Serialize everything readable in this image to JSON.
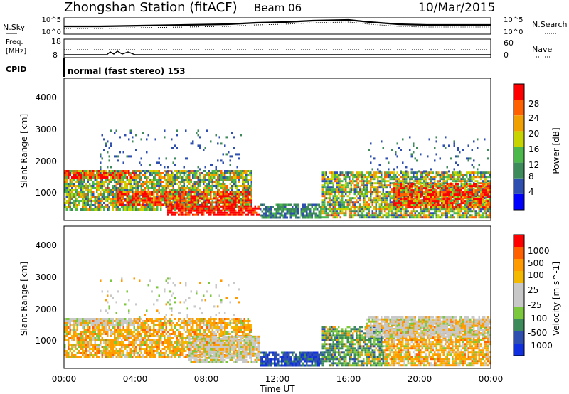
{
  "header": {
    "station": "Zhongshan Station (fitACF)",
    "beam": "Beam 06",
    "date": "10/Mar/2015"
  },
  "noise_panel": {
    "left_label": "N.Sky",
    "right_label": "N.Search",
    "left_ticks": [
      "10^5",
      "10^0"
    ],
    "right_ticks": [
      "10^5",
      "10^0"
    ]
  },
  "freq_panel": {
    "left_label_1": "Freq.",
    "left_label_2": "[MHz]",
    "left_ticks": [
      "18",
      "8"
    ],
    "right_label": "Nave",
    "right_ticks": [
      "60",
      "0"
    ]
  },
  "cpid": {
    "label": "CPID",
    "text": "normal (fast stereo) 153"
  },
  "time_axis": {
    "title": "Time UT",
    "ticks": [
      "00:00",
      "04:00",
      "08:00",
      "12:00",
      "16:00",
      "20:00",
      "00:00"
    ]
  },
  "colors": {
    "power_scale": [
      "#0000ff",
      "#2f4fb0",
      "#3d8a5a",
      "#4cb84c",
      "#c8d400",
      "#f0a000",
      "#ff6000",
      "#ff0000"
    ],
    "velocity_scale": [
      "#ff0000",
      "#ff6000",
      "#ff9a00",
      "#f3b800",
      "#c8c8c8",
      "#c8c8c8",
      "#7cc83c",
      "#3d8a5a",
      "#2f4fb0",
      "#1030e0"
    ]
  },
  "chart_data": [
    {
      "type": "heatmap",
      "name": "power-panel",
      "ylabel": "Slant Range [km]",
      "yticks": [
        "1000",
        "2000",
        "3000",
        "4000"
      ],
      "colorbar_label": "Power [dB]",
      "colorbar_ticks": [
        "4",
        "8",
        "12",
        "16",
        "20",
        "24",
        "28"
      ],
      "x_range_hours": [
        0,
        24
      ],
      "y_range_km": [
        180,
        4600
      ],
      "bands": [
        {
          "t0": 0.0,
          "t1": 10.6,
          "r0": 500,
          "r1": 1750,
          "level": "mid"
        },
        {
          "t0": 0.0,
          "t1": 4.0,
          "r0": 1500,
          "r1": 1750,
          "level": "high"
        },
        {
          "t0": 3.0,
          "t1": 10.6,
          "r0": 700,
          "r1": 1100,
          "level": "high"
        },
        {
          "t0": 5.8,
          "t1": 11.0,
          "r0": 350,
          "r1": 650,
          "level": "max"
        },
        {
          "t0": 11.0,
          "t1": 14.5,
          "r0": 300,
          "r1": 700,
          "level": "low"
        },
        {
          "t0": 14.5,
          "t1": 24.0,
          "r0": 300,
          "r1": 1700,
          "level": "mid"
        },
        {
          "t0": 18.5,
          "t1": 24.0,
          "r0": 600,
          "r1": 1350,
          "level": "high"
        },
        {
          "t0": 2.0,
          "t1": 10.0,
          "r0": 1700,
          "r1": 3000,
          "level": "sparse"
        },
        {
          "t0": 17.0,
          "t1": 24.0,
          "r0": 1700,
          "r1": 2800,
          "level": "sparse"
        }
      ]
    },
    {
      "type": "heatmap",
      "name": "velocity-panel",
      "ylabel": "Slant Range [km]",
      "yticks": [
        "1000",
        "2000",
        "3000",
        "4000"
      ],
      "colorbar_label": "Velocity [m s^-1]",
      "colorbar_ticks": [
        "1000",
        "500",
        "100",
        "25",
        "-25",
        "-100",
        "-500",
        "-1000"
      ],
      "x_range_hours": [
        0,
        24
      ],
      "y_range_km": [
        180,
        4600
      ],
      "bands": [
        {
          "t0": 0.0,
          "t1": 10.6,
          "r0": 500,
          "r1": 1750,
          "level": "orange"
        },
        {
          "t0": 0.0,
          "t1": 4.0,
          "r0": 1500,
          "r1": 1750,
          "level": "grey"
        },
        {
          "t0": 7.0,
          "t1": 11.0,
          "r0": 350,
          "r1": 1200,
          "level": "grey"
        },
        {
          "t0": 11.0,
          "t1": 14.5,
          "r0": 300,
          "r1": 700,
          "level": "blue"
        },
        {
          "t0": 14.5,
          "t1": 18.0,
          "r0": 300,
          "r1": 1500,
          "level": "green"
        },
        {
          "t0": 18.0,
          "t1": 24.0,
          "r0": 300,
          "r1": 1700,
          "level": "orange"
        },
        {
          "t0": 17.0,
          "t1": 24.0,
          "r0": 1200,
          "r1": 1800,
          "level": "grey"
        },
        {
          "t0": 2.0,
          "t1": 10.0,
          "r0": 1700,
          "r1": 3000,
          "level": "sparse"
        }
      ]
    }
  ]
}
